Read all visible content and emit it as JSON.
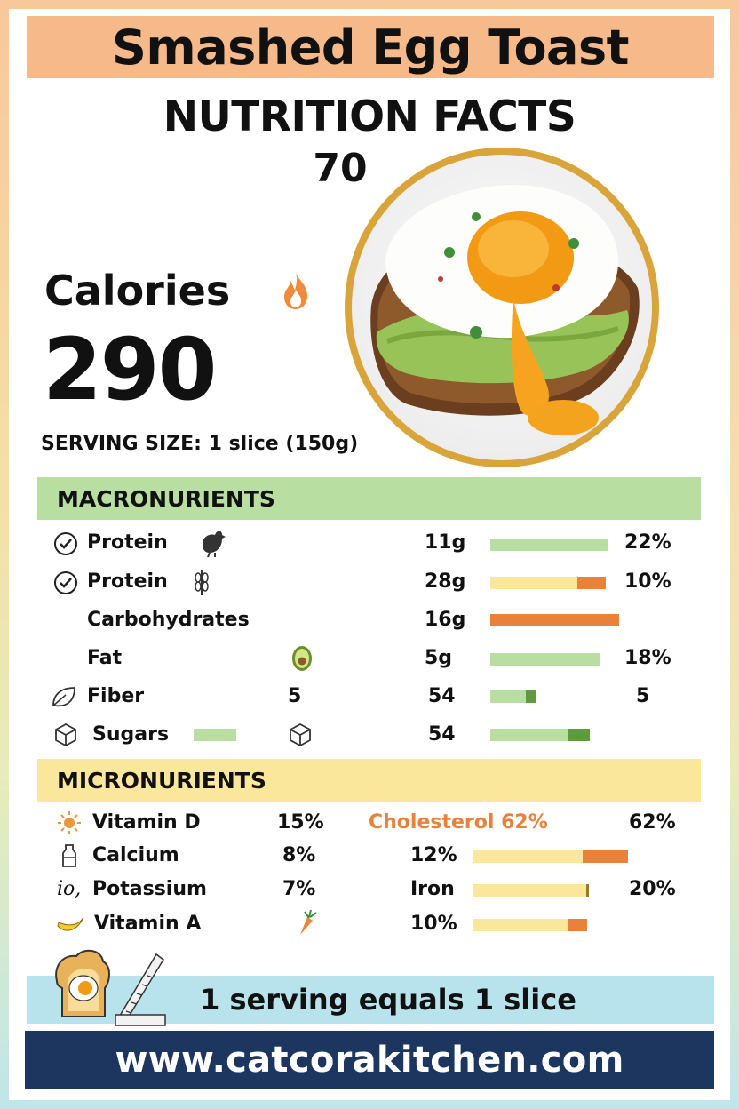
{
  "title": "Smashed Egg Toast",
  "nutrition_heading": "NUTRITION FACTS",
  "nutrition_number": "70",
  "calories": {
    "label": "Calories",
    "value": "290",
    "icon": "fire-icon"
  },
  "serving_size": "SERVING SIZE: 1 slice (150g)",
  "photo": {
    "subject": "egg-on-avocado-toast"
  },
  "colors": {
    "title_band": "#f6b98a",
    "macro_band": "#b9dea1",
    "micro_band": "#fbe79c",
    "serving_band": "#b8e2ec",
    "url_band": "#1d3660",
    "bar_green": "#b9dea1",
    "bar_dark_green": "#5e9a3e",
    "bar_yellow": "#fbe79c",
    "bar_orange": "#e8813a",
    "frame_gold": "#d9a53b"
  },
  "macronutrients": {
    "heading": "MACRONURIENTS",
    "rows": [
      {
        "label": "Protein",
        "icon": "chicken-icon",
        "amount": "11g",
        "percent": "22%",
        "bar": "green-fill"
      },
      {
        "label": "Protein",
        "icon": "wheat-icon",
        "amount": "28g",
        "percent": "10%",
        "bar": "yellow-with-orange-end"
      },
      {
        "label": "Carbohydrates",
        "amount": "16g",
        "bar": "orange-fill"
      },
      {
        "label": "Fat",
        "icon": "avocado-icon",
        "amount": "5g",
        "percent": "18%",
        "bar": "green-fill"
      },
      {
        "label": "Fiber",
        "icon": "leaf-icon",
        "mid_value": "5",
        "amount": "54",
        "right_value": "5",
        "bar": "green-short-dark-end"
      },
      {
        "label": "Sugars",
        "icon": "sugar-cube-icon",
        "amount": "54",
        "bar": "green-with-dark-end"
      }
    ]
  },
  "micronutrients": {
    "heading": "MICRONURIENTS",
    "left": [
      {
        "label": "Vitamin D",
        "icon": "sun-icon",
        "percent": "15%"
      },
      {
        "label": "Calcium",
        "icon": "milk-bottle-icon",
        "percent": "8%"
      },
      {
        "label": "Potassium",
        "icon": "potassium-icon",
        "icon_text": "io,",
        "percent": "7%"
      },
      {
        "label": "Vitamin A",
        "icon": "banana-icon",
        "extra_icon": "carrot-icon"
      }
    ],
    "right": [
      {
        "label": "Cholesterol 62%",
        "percent": "62%"
      },
      {
        "label": "12%",
        "bar": "yellow-with-orange-end"
      },
      {
        "label": "Iron",
        "percent": "20%",
        "bar": "yellow-with-thin-end"
      },
      {
        "label": "10%",
        "bar": "yellow-with-orange-end"
      }
    ]
  },
  "serving_note": "1 serving equals 1 slice",
  "website": "www.catcorakitchen.com"
}
